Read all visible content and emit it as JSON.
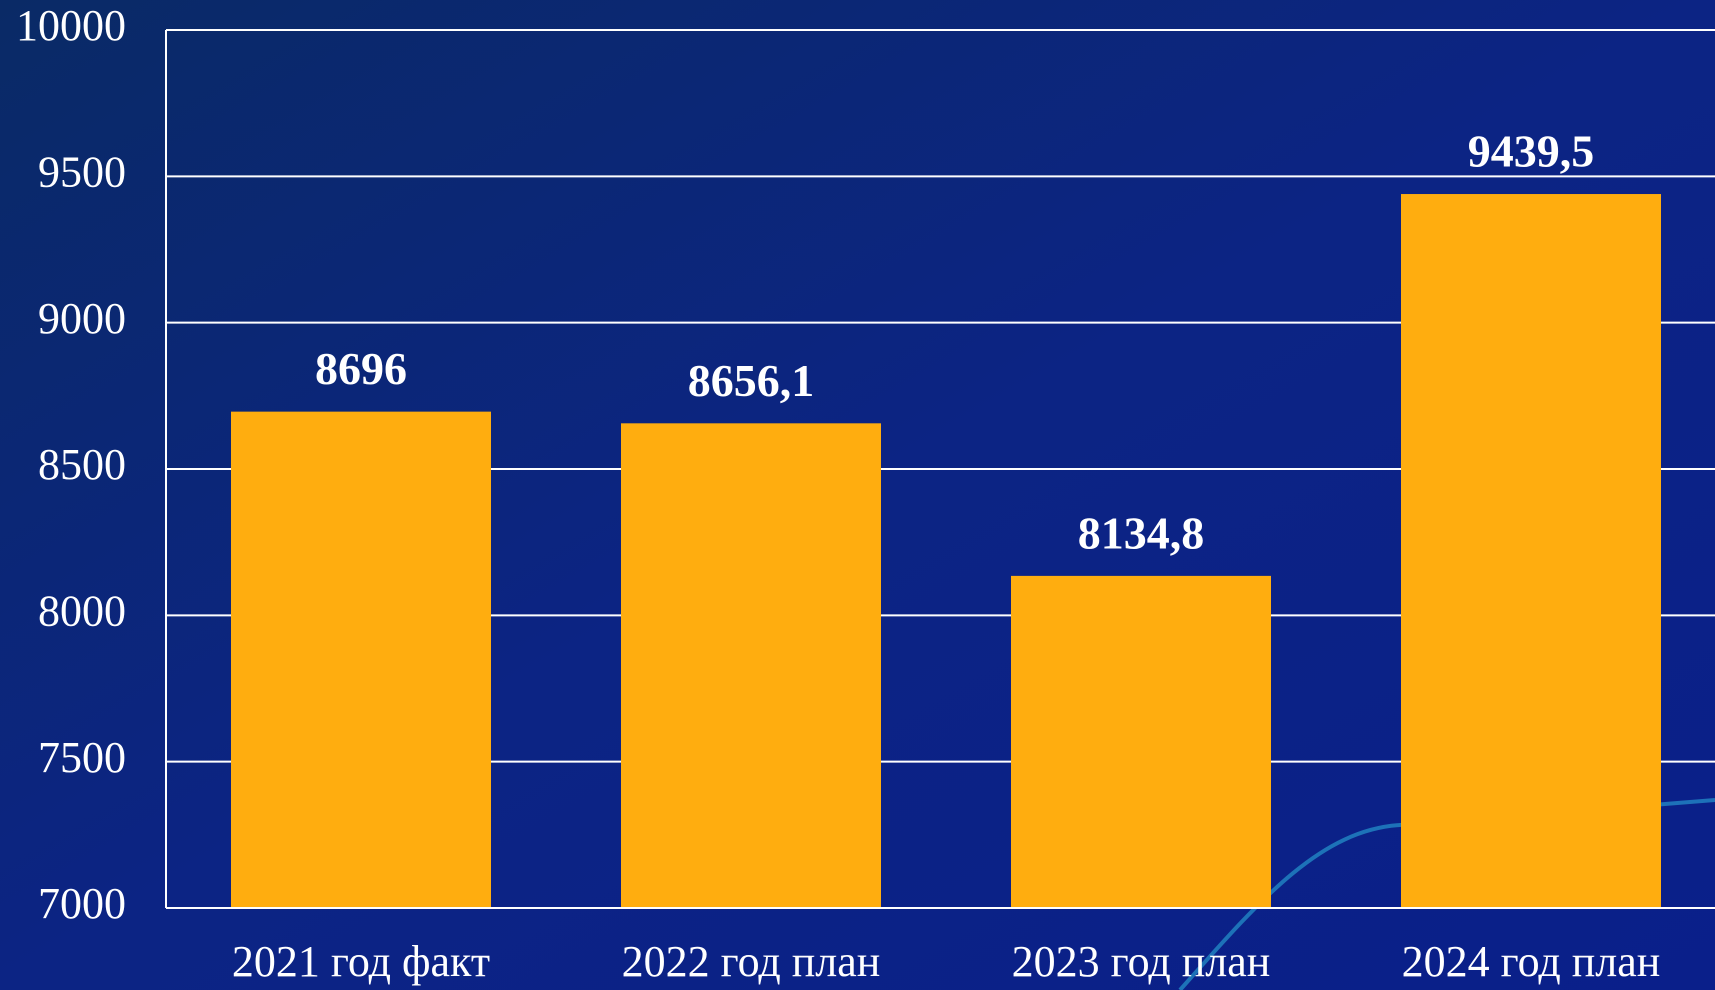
{
  "chart_data": {
    "type": "bar",
    "categories": [
      "2021 год факт",
      "2022 год план",
      "2023 год план",
      "2024 год план"
    ],
    "values": [
      8696,
      8656.1,
      8134.8,
      9439.5
    ],
    "value_labels": [
      "8696",
      "8656,1",
      "8134,8",
      "9439,5"
    ],
    "color": "#ffad0f",
    "ylim": [
      7000,
      10000
    ],
    "yticks": [
      7000,
      7500,
      8000,
      8500,
      9000,
      9500,
      10000
    ],
    "grid": true
  }
}
